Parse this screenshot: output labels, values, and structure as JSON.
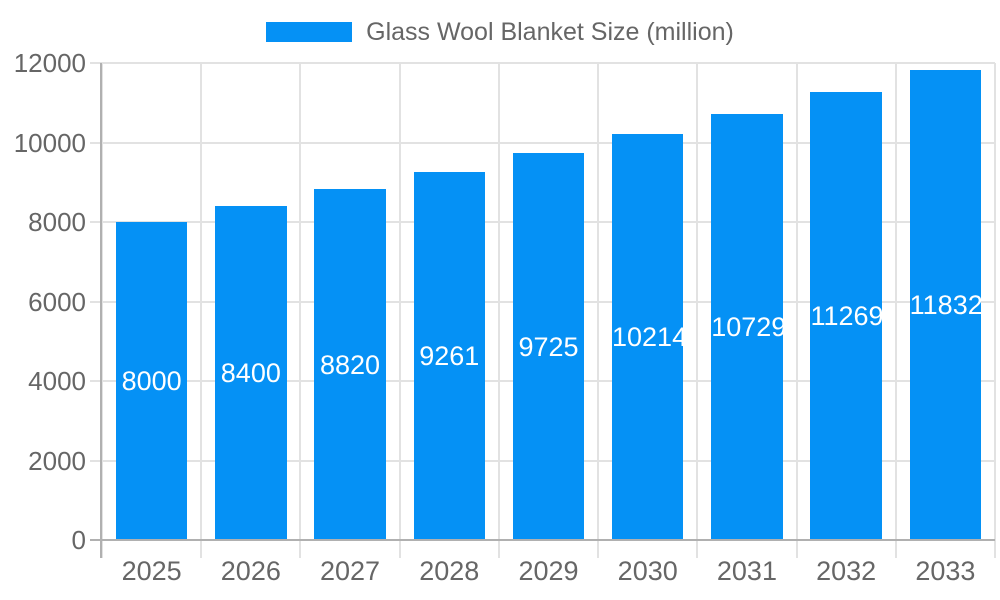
{
  "chart_data": {
    "type": "bar",
    "title": "Glass Wool Blanket Size (million)",
    "legend": {
      "label": "Glass Wool Blanket Size (million)",
      "position": "top-center"
    },
    "categories": [
      "2025",
      "2026",
      "2027",
      "2028",
      "2029",
      "2030",
      "2031",
      "2032",
      "2033"
    ],
    "values": [
      8000,
      8400,
      8820,
      9261,
      9725,
      10214,
      10729,
      11269,
      11832
    ],
    "series": [
      {
        "name": "Glass Wool Blanket Size (million)",
        "values": [
          8000,
          8400,
          8820,
          9261,
          9725,
          10214,
          10729,
          11269,
          11832
        ]
      }
    ],
    "bar_value_labels": [
      "8000",
      "8400",
      "8820",
      "9261",
      "9725",
      "10214",
      "10729",
      "11269",
      "11832"
    ],
    "xlabel": "",
    "ylabel": "",
    "ylim": [
      0,
      12000
    ],
    "ytick_step": 2000,
    "yticks": [
      "0",
      "2000",
      "4000",
      "6000",
      "8000",
      "10000",
      "12000"
    ],
    "grid": true,
    "bar_labels_visible": true,
    "colors": {
      "bar": "#0591f5",
      "bar_label": "#ffffff",
      "axis_text": "#666666",
      "grid": "#e2e2e2",
      "axis_line": "#b0b0b0",
      "background": "#ffffff"
    }
  }
}
